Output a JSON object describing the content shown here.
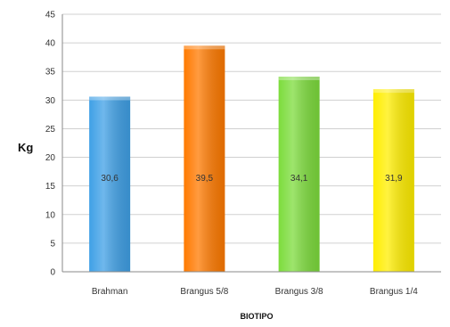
{
  "chart_data": {
    "type": "bar",
    "categories": [
      "Brahman",
      "Brangus 5/8",
      "Brangus 3/8",
      "Brangus 1/4"
    ],
    "values": [
      30.6,
      39.5,
      34.1,
      31.9
    ],
    "value_labels": [
      "30,6",
      "39,5",
      "34,1",
      "31,9"
    ],
    "colors": [
      "#3fa0e6",
      "#ff7a00",
      "#7ddc3c",
      "#ffee00"
    ],
    "ylabel": "Kg",
    "xlabel": "BIOTIPO",
    "ylim": [
      0,
      45
    ],
    "yticks": [
      0,
      5,
      10,
      15,
      20,
      25,
      30,
      35,
      40,
      45
    ],
    "grid": true
  }
}
